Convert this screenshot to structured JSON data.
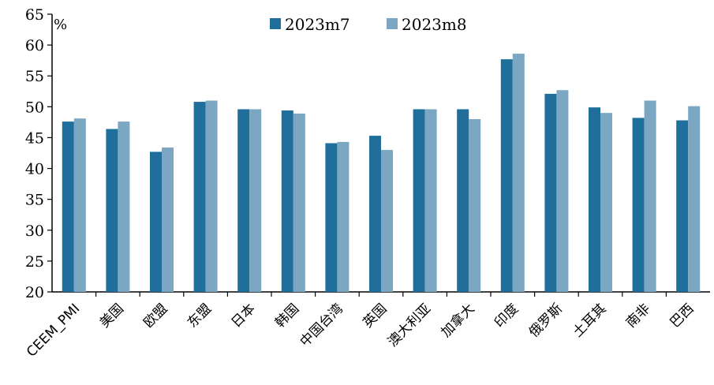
{
  "chart_data": {
    "type": "bar",
    "unit_label": "%",
    "categories": [
      "CEEM_PMI",
      "美国",
      "欧盟",
      "东盟",
      "日本",
      "韩国",
      "中国台湾",
      "英国",
      "澳大利亚",
      "加拿大",
      "印度",
      "俄罗斯",
      "土耳其",
      "南非",
      "巴西"
    ],
    "series": [
      {
        "name": "2023m7",
        "color": "#1f6e9c",
        "values": [
          47.6,
          46.4,
          42.7,
          50.8,
          49.6,
          49.4,
          44.1,
          45.3,
          49.6,
          49.6,
          57.7,
          52.1,
          49.9,
          48.2,
          47.8
        ]
      },
      {
        "name": "2023m8",
        "color": "#7ba7c2",
        "values": [
          48.1,
          47.6,
          43.4,
          51.0,
          49.6,
          48.9,
          44.3,
          43.0,
          49.6,
          48.0,
          58.6,
          52.7,
          49.0,
          51.0,
          50.1
        ]
      }
    ],
    "ylim": [
      20,
      65
    ],
    "yticks": [
      20,
      25,
      30,
      35,
      40,
      45,
      50,
      55,
      60,
      65
    ],
    "legend_position": "top-center",
    "grid": false
  }
}
